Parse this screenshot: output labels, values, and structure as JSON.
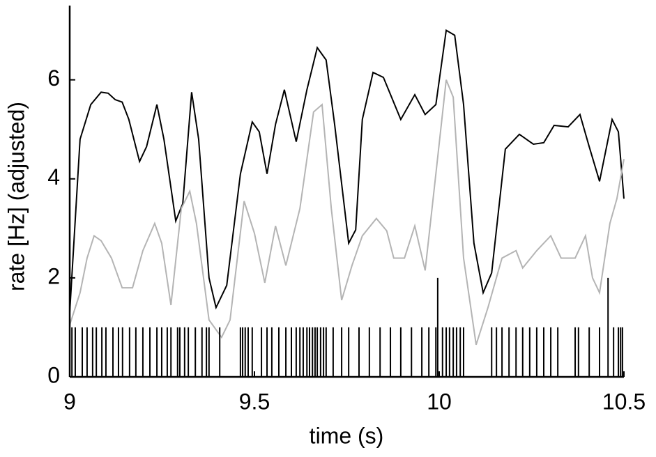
{
  "chart_data": {
    "type": "line",
    "xlabel": "time (s)",
    "ylabel": "rate   [Hz] (adjusted)",
    "xlim": [
      9,
      10.5
    ],
    "ylim": [
      0,
      7.5
    ],
    "xticks": [
      9,
      9.5,
      10,
      10.5
    ],
    "yticks": [
      0,
      2,
      4,
      6
    ],
    "series": [
      {
        "color": "#000000",
        "x": [
          9.0,
          9.028,
          9.057,
          9.085,
          9.104,
          9.123,
          9.142,
          9.16,
          9.189,
          9.208,
          9.236,
          9.255,
          9.287,
          9.306,
          9.33,
          9.349,
          9.377,
          9.396,
          9.425,
          9.462,
          9.494,
          9.513,
          9.534,
          9.557,
          9.581,
          9.613,
          9.642,
          9.67,
          9.694,
          9.717,
          9.755,
          9.774,
          9.792,
          9.821,
          9.849,
          9.896,
          9.934,
          9.962,
          9.991,
          10.019,
          10.042,
          10.066,
          10.094,
          10.119,
          10.142,
          10.179,
          10.217,
          10.255,
          10.283,
          10.311,
          10.349,
          10.381,
          10.406,
          10.434,
          10.468,
          10.485,
          10.5
        ],
        "values": [
          1.3,
          4.8,
          5.5,
          5.75,
          5.73,
          5.6,
          5.55,
          5.2,
          4.35,
          4.65,
          5.5,
          4.8,
          3.15,
          3.5,
          5.75,
          4.8,
          2.0,
          1.4,
          1.85,
          4.1,
          5.15,
          4.95,
          4.1,
          5.1,
          5.8,
          4.75,
          5.8,
          6.65,
          6.4,
          5.1,
          2.7,
          2.97,
          5.2,
          6.15,
          6.05,
          5.2,
          5.7,
          5.3,
          5.5,
          7.0,
          6.9,
          5.5,
          2.7,
          1.7,
          2.1,
          4.6,
          4.9,
          4.7,
          4.73,
          5.08,
          5.05,
          5.3,
          4.65,
          3.95,
          5.2,
          4.95,
          3.6
        ]
      },
      {
        "color": "#b4b4b4",
        "x": [
          9.0,
          9.028,
          9.047,
          9.066,
          9.085,
          9.113,
          9.142,
          9.17,
          9.198,
          9.23,
          9.249,
          9.274,
          9.302,
          9.325,
          9.343,
          9.377,
          9.411,
          9.434,
          9.472,
          9.5,
          9.528,
          9.557,
          9.585,
          9.623,
          9.66,
          9.683,
          9.708,
          9.736,
          9.764,
          9.792,
          9.83,
          9.858,
          9.877,
          9.906,
          9.934,
          9.962,
          9.991,
          10.019,
          10.038,
          10.066,
          10.1,
          10.132,
          10.17,
          10.208,
          10.226,
          10.264,
          10.302,
          10.33,
          10.368,
          10.396,
          10.415,
          10.434,
          10.462,
          10.481,
          10.5
        ],
        "values": [
          1.05,
          1.7,
          2.4,
          2.85,
          2.75,
          2.4,
          1.8,
          1.8,
          2.55,
          3.1,
          2.7,
          1.45,
          3.4,
          3.75,
          3.1,
          1.15,
          0.8,
          1.15,
          3.55,
          2.9,
          1.9,
          3.05,
          2.25,
          3.4,
          5.35,
          5.5,
          3.4,
          1.55,
          2.25,
          2.85,
          3.2,
          2.95,
          2.4,
          2.4,
          3.05,
          2.15,
          4.1,
          6.0,
          5.65,
          2.4,
          0.65,
          1.4,
          2.4,
          2.55,
          2.2,
          2.55,
          2.85,
          2.4,
          2.4,
          2.85,
          2.0,
          1.7,
          3.1,
          3.6,
          4.4
        ]
      }
    ],
    "spikes": {
      "color": "#000000",
      "x": [
        9.006,
        9.015,
        9.034,
        9.047,
        9.062,
        9.072,
        9.087,
        9.098,
        9.117,
        9.132,
        9.143,
        9.162,
        9.179,
        9.198,
        9.217,
        9.236,
        9.249,
        9.264,
        9.274,
        9.292,
        9.298,
        9.311,
        9.321,
        9.34,
        9.358,
        9.37,
        9.377,
        9.406,
        9.462,
        9.468,
        9.475,
        9.483,
        9.494,
        9.519,
        9.534,
        9.547,
        9.566,
        9.585,
        9.6,
        9.613,
        9.623,
        9.632,
        9.642,
        9.649,
        9.657,
        9.664,
        9.67,
        9.679,
        9.687,
        9.694,
        9.713,
        9.736,
        9.755,
        9.783,
        9.811,
        9.84,
        9.868,
        9.896,
        9.925,
        9.953,
        9.972,
        9.991,
        9.996,
        10.009,
        10.019,
        10.028,
        10.038,
        10.047,
        10.057,
        10.066,
        10.142,
        10.155,
        10.17,
        10.189,
        10.208,
        10.226,
        10.245,
        10.264,
        10.283,
        10.302,
        10.321,
        10.368,
        10.377,
        10.406,
        10.434,
        10.457,
        10.472,
        10.485,
        10.491,
        10.496
      ],
      "values": [
        1,
        1,
        1,
        1,
        1,
        1,
        1,
        1,
        1,
        1,
        1,
        1,
        1,
        1,
        1,
        1,
        1,
        1,
        1,
        1,
        1,
        1,
        1,
        1,
        1,
        1,
        1,
        1,
        1,
        1,
        1,
        1,
        1,
        1,
        1,
        1,
        1,
        1,
        1,
        1,
        1,
        1,
        1,
        1,
        1,
        1,
        1,
        1,
        1,
        1,
        1,
        1,
        1,
        1,
        1,
        1,
        1,
        1,
        1,
        1,
        1,
        1,
        2,
        1,
        1,
        1,
        1,
        1,
        1,
        1,
        1,
        1,
        1,
        1,
        1,
        1,
        1,
        1,
        1,
        1,
        1,
        1,
        1,
        1,
        1,
        2,
        1,
        1,
        1,
        1
      ]
    }
  }
}
